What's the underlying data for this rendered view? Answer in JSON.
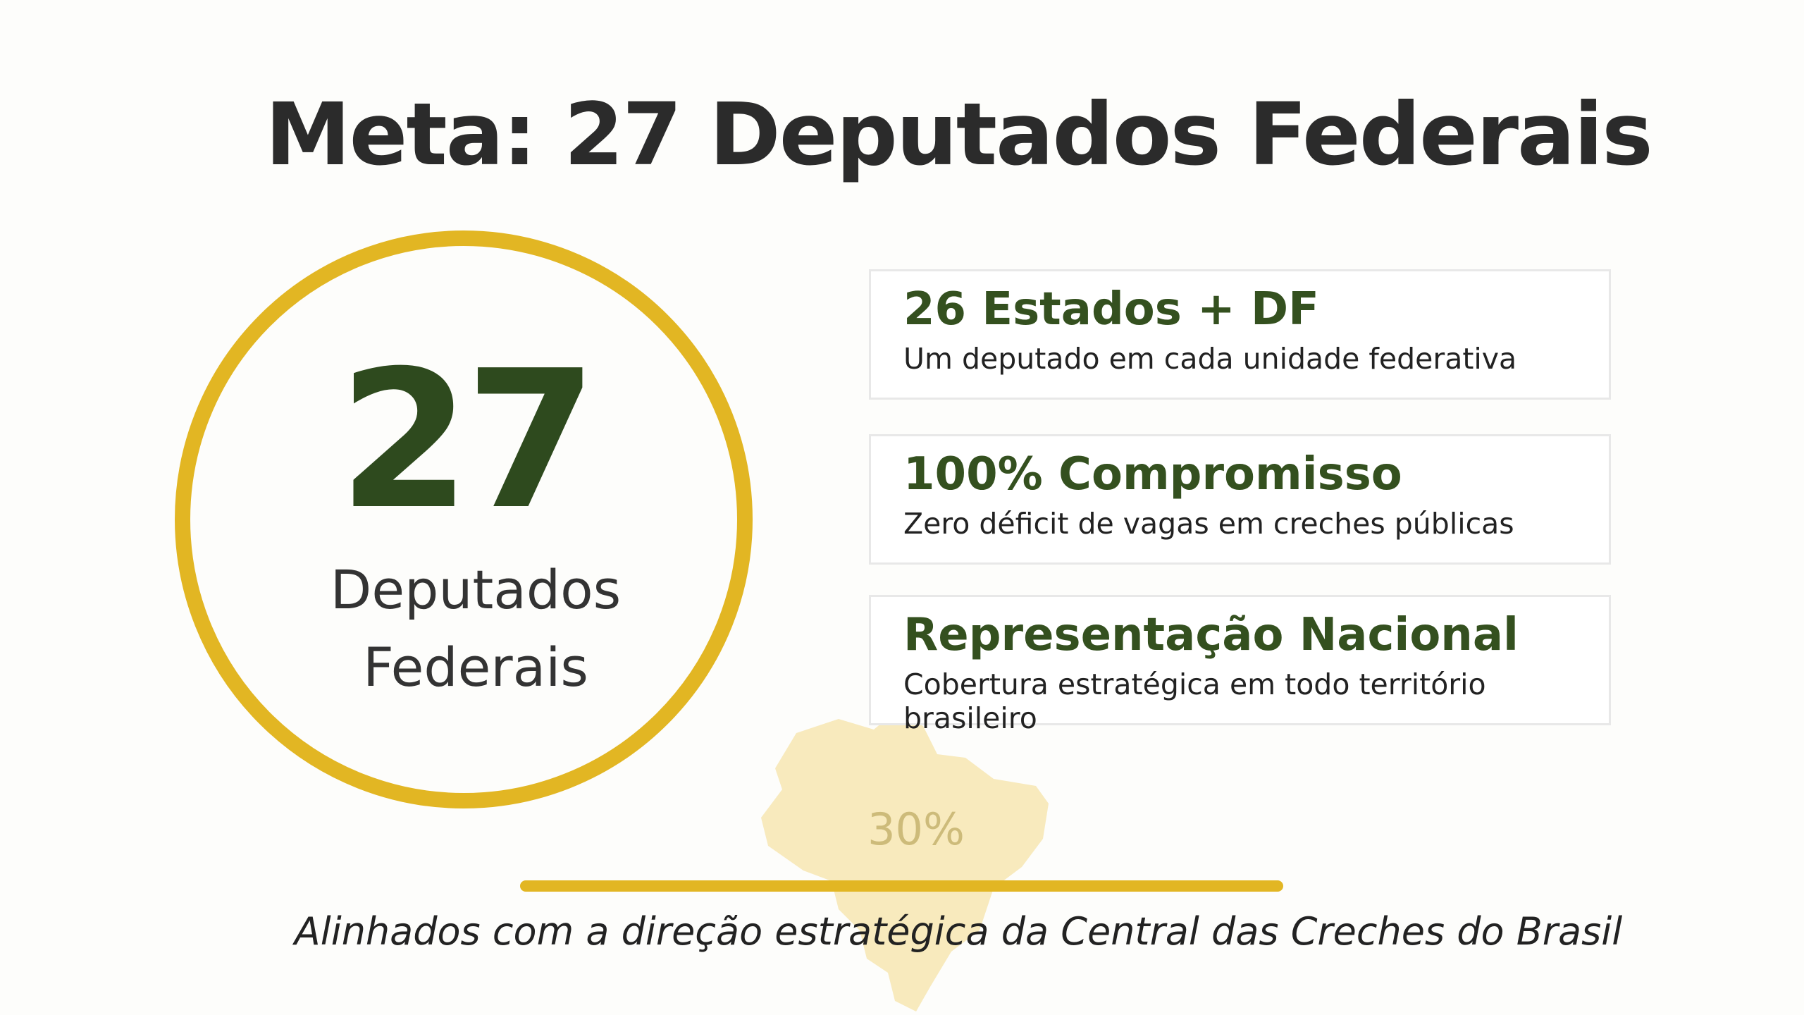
{
  "title": "Meta: 27 Deputados Federais",
  "highlight": {
    "number": 27,
    "label_lines": [
      "Deputados",
      "Federais"
    ]
  },
  "cards": [
    {
      "title": "26 Estados + DF",
      "subtitle": "Um deputado em cada unidade federativa"
    },
    {
      "title": "100% Compromisso",
      "subtitle": "Zero déficit de vagas em creches públicas"
    },
    {
      "title": "Representação Nacional",
      "subtitle": "Cobertura estratégica em todo território brasileiro"
    }
  ],
  "map_label": "30%",
  "footer": "Alinhados com a direção estratégica da Central das Creches do Brasil"
}
